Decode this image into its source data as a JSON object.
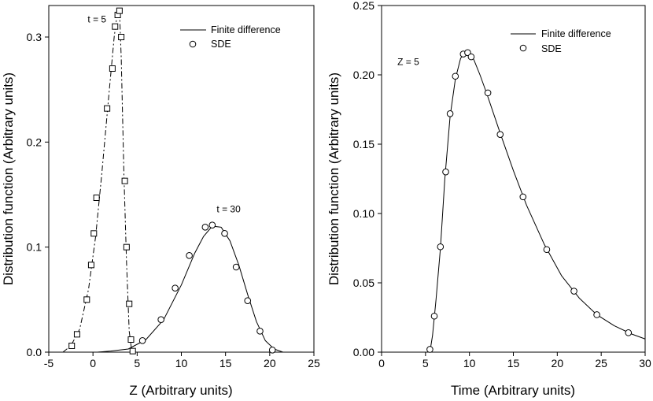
{
  "chart_data": [
    {
      "type": "line",
      "xlabel": "Z (Arbitrary units)",
      "ylabel": "Distribution function (Arbitrary units)",
      "xlim": [
        -5,
        25
      ],
      "ylim": [
        0,
        0.33
      ],
      "xticks": [
        "-5",
        "0",
        "5",
        "10",
        "15",
        "20",
        "25"
      ],
      "yticks": [
        "0.0",
        "0.1",
        "0.2",
        "0.3"
      ],
      "legend": {
        "position": "top-right",
        "line_label": "Finite difference",
        "marker_label": "SDE"
      },
      "annotations": [
        {
          "text": "t = 5",
          "x": -0.6,
          "y": 0.314
        },
        {
          "text": "t = 30",
          "x": 14.0,
          "y": 0.133
        }
      ],
      "series": [
        {
          "name": "Finite difference t = 5",
          "style": "dash-dot",
          "x": [
            -3.4,
            -2.5,
            -1.5,
            -0.5,
            0.3,
            1.0,
            1.8,
            2.4,
            2.8,
            3.0,
            3.2,
            3.5,
            3.8,
            4.1,
            4.4
          ],
          "y": [
            0.0,
            0.006,
            0.022,
            0.06,
            0.11,
            0.17,
            0.245,
            0.3,
            0.326,
            0.325,
            0.28,
            0.17,
            0.085,
            0.02,
            0.0
          ]
        },
        {
          "name": "SDE t = 5",
          "marker": "square",
          "x": [
            -2.4,
            -1.8,
            -0.7,
            -0.2,
            0.1,
            0.4,
            1.6,
            2.2,
            2.5,
            2.8,
            3.0,
            3.2,
            3.6,
            3.8,
            4.1,
            4.3,
            4.5
          ],
          "y": [
            0.006,
            0.017,
            0.05,
            0.083,
            0.113,
            0.147,
            0.232,
            0.27,
            0.31,
            0.321,
            0.325,
            0.3,
            0.163,
            0.1,
            0.046,
            0.012,
            0.001
          ]
        },
        {
          "name": "Finite difference t = 30",
          "style": "solid",
          "x": [
            0.5,
            2,
            4,
            6,
            8,
            10,
            11.5,
            12.5,
            13.5,
            14.5,
            15.5,
            16.5,
            17.5,
            18.5,
            19.5,
            20.5,
            21.5
          ],
          "y": [
            0.0,
            0.001,
            0.003,
            0.012,
            0.031,
            0.064,
            0.094,
            0.11,
            0.12,
            0.119,
            0.106,
            0.083,
            0.055,
            0.029,
            0.011,
            0.003,
            0.0
          ]
        },
        {
          "name": "SDE t = 30",
          "marker": "circle",
          "x": [
            5.6,
            7.7,
            9.3,
            10.9,
            12.7,
            13.5,
            14.9,
            16.2,
            17.5,
            18.9,
            20.3
          ],
          "y": [
            0.011,
            0.031,
            0.061,
            0.092,
            0.119,
            0.121,
            0.113,
            0.081,
            0.049,
            0.02,
            0.002
          ]
        }
      ]
    },
    {
      "type": "line",
      "xlabel": "Time (Arbitrary units)",
      "ylabel": "Distribution function (Arbitrary units)",
      "xlim": [
        0,
        30
      ],
      "ylim": [
        0,
        0.25
      ],
      "xticks": [
        "0",
        "5",
        "10",
        "15",
        "20",
        "25",
        "30"
      ],
      "yticks": [
        "0.00",
        "0.05",
        "0.10",
        "0.15",
        "0.20",
        "0.25"
      ],
      "legend": {
        "position": "top-right",
        "line_label": "Finite difference",
        "marker_label": "SDE"
      },
      "annotations": [
        {
          "text": "Z = 5",
          "x": 1.8,
          "y": 0.207
        }
      ],
      "series": [
        {
          "name": "Finite difference Z = 5",
          "style": "solid",
          "x": [
            5.5,
            5.8,
            6.2,
            6.7,
            7.2,
            7.8,
            8.4,
            9.0,
            9.5,
            10.0,
            10.5,
            11.2,
            12.0,
            13.5,
            15.0,
            16.5,
            18.5,
            20.5,
            22.5,
            24.5,
            26.5,
            28.5,
            30.0
          ],
          "y": [
            0.0,
            0.012,
            0.038,
            0.075,
            0.125,
            0.17,
            0.197,
            0.212,
            0.216,
            0.215,
            0.211,
            0.2,
            0.186,
            0.158,
            0.131,
            0.106,
            0.078,
            0.055,
            0.039,
            0.027,
            0.019,
            0.013,
            0.0095
          ]
        },
        {
          "name": "SDE Z = 5",
          "marker": "circle",
          "x": [
            5.5,
            6.0,
            6.7,
            7.3,
            7.8,
            8.4,
            9.3,
            9.8,
            10.2,
            12.1,
            13.5,
            16.1,
            18.8,
            21.9,
            24.5,
            28.1
          ],
          "y": [
            0.002,
            0.026,
            0.076,
            0.13,
            0.172,
            0.199,
            0.215,
            0.216,
            0.213,
            0.187,
            0.157,
            0.112,
            0.074,
            0.044,
            0.027,
            0.014
          ]
        }
      ]
    }
  ]
}
